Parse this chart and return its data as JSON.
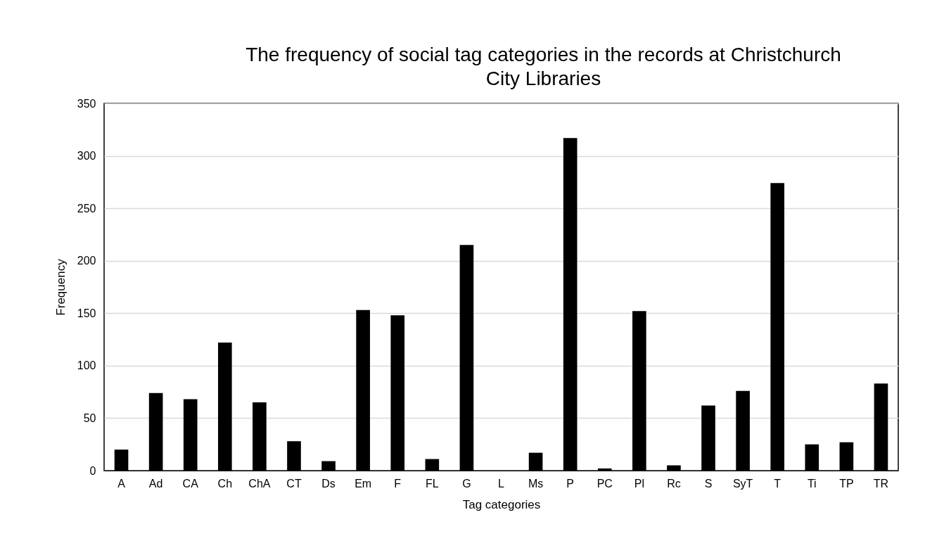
{
  "chart_data": {
    "type": "bar",
    "title": "The frequency of social tag categories in the records at Christchurch City Libraries",
    "xlabel": "Tag categories",
    "ylabel": "Frequency",
    "categories": [
      "A",
      "Ad",
      "CA",
      "Ch",
      "ChA",
      "CT",
      "Ds",
      "Em",
      "F",
      "FL",
      "G",
      "L",
      "Ms",
      "P",
      "PC",
      "Pl",
      "Rc",
      "S",
      "SyT",
      "T",
      "Ti",
      "TP",
      "TR"
    ],
    "values": [
      20,
      74,
      68,
      122,
      65,
      28,
      9,
      153,
      148,
      11,
      215,
      0,
      17,
      317,
      2,
      152,
      5,
      62,
      76,
      274,
      25,
      27,
      83
    ],
    "color": "#000000",
    "ylim": [
      0,
      350
    ],
    "yticks": [
      0,
      50,
      100,
      150,
      200,
      250,
      300,
      350
    ],
    "grid": "y"
  }
}
